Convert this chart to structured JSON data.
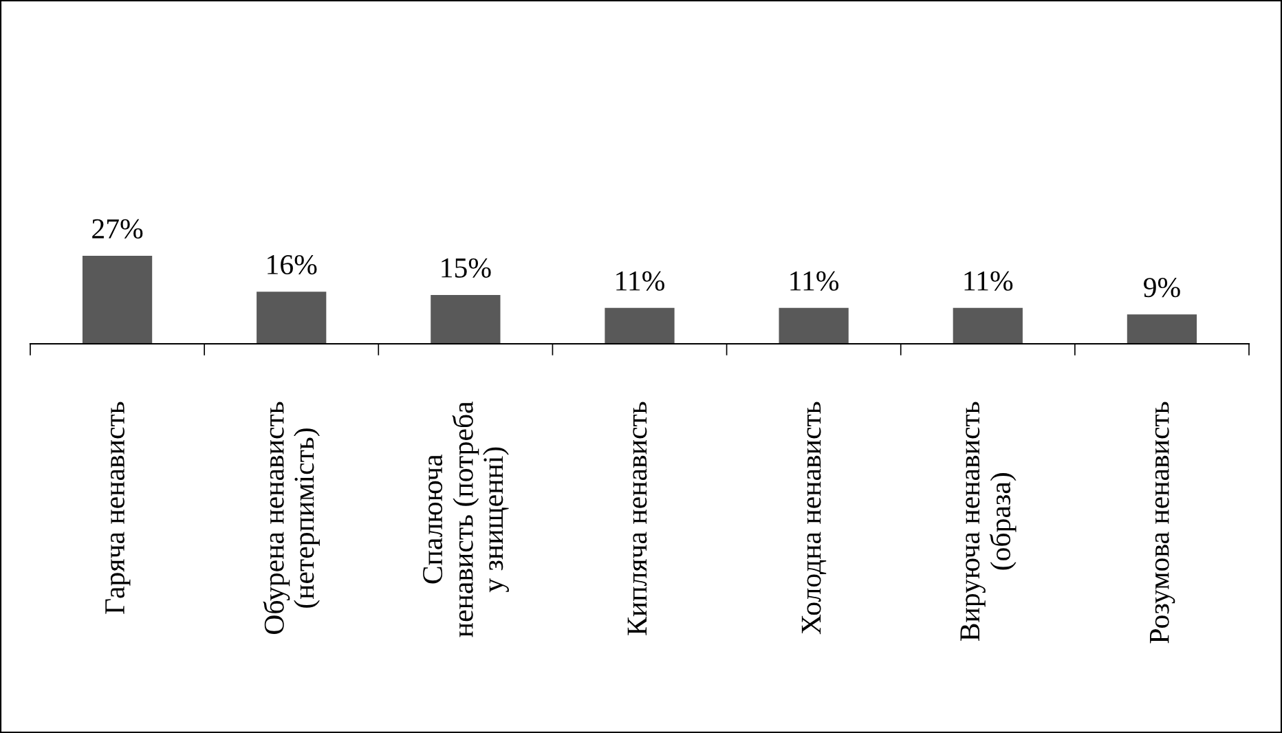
{
  "chart_data": {
    "type": "bar",
    "categories": [
      "Гаряча ненависть",
      "Обурена ненависть\n(нетерпимість)",
      "Спалююча\nненависть (потреба\nу знищенні)",
      "Кипляча ненависть",
      "Холодна ненависть",
      "Вируюча ненависть\n(образа)",
      "Розумова ненависть"
    ],
    "values": [
      27,
      16,
      15,
      11,
      11,
      11,
      9
    ],
    "value_labels": [
      "27%",
      "16%",
      "15%",
      "11%",
      "11%",
      "11%",
      "9%"
    ],
    "color": "#595959",
    "grid": false,
    "legend": false
  }
}
